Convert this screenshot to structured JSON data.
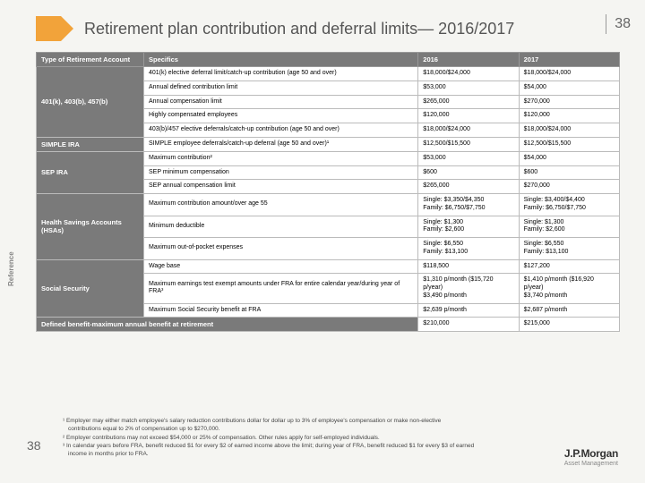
{
  "title": "Retirement plan contribution and deferral limits— 2016/2017",
  "page_number_top": "38",
  "page_number_bottom": "38",
  "reference_label": "Reference",
  "logo": {
    "main": "J.P.Morgan",
    "sub": "Asset Management"
  },
  "table": {
    "headers": [
      "Type of Retirement Account",
      "Specifics",
      "2016",
      "2017"
    ],
    "groups": [
      {
        "category": "401(k), 403(b), 457(b)",
        "rows": [
          {
            "spec": "401(k) elective deferral limit/catch-up contribution (age 50 and over)",
            "v2016": "$18,000/$24,000",
            "v2017": "$18,000/$24,000"
          },
          {
            "spec": "Annual defined contribution limit",
            "v2016": "$53,000",
            "v2017": "$54,000"
          },
          {
            "spec": "Annual compensation limit",
            "v2016": "$265,000",
            "v2017": "$270,000"
          },
          {
            "spec": "Highly compensated employees",
            "v2016": "$120,000",
            "v2017": "$120,000"
          },
          {
            "spec": "403(b)/457 elective deferrals/catch-up contribution (age 50 and over)",
            "v2016": "$18,000/$24,000",
            "v2017": "$18,000/$24,000"
          }
        ]
      },
      {
        "category": "SIMPLE IRA",
        "rows": [
          {
            "spec": "SIMPLE employee deferrals/catch-up deferral (age 50 and over)¹",
            "v2016": "$12,500/$15,500",
            "v2017": "$12,500/$15,500"
          }
        ]
      },
      {
        "category": "SEP IRA",
        "rows": [
          {
            "spec": "Maximum contribution²",
            "v2016": "$53,000",
            "v2017": "$54,000"
          },
          {
            "spec": "SEP minimum compensation",
            "v2016": "$600",
            "v2017": "$600"
          },
          {
            "spec": "SEP annual compensation limit",
            "v2016": "$265,000",
            "v2017": "$270,000"
          }
        ]
      },
      {
        "category": "Health Savings Accounts (HSAs)",
        "rows": [
          {
            "spec": "Maximum contribution amount/over age 55",
            "v2016": "Single: $3,350/$4,350\nFamily: $6,750/$7,750",
            "v2017": "Single: $3,400/$4,400\nFamily: $6,750/$7,750"
          },
          {
            "spec": "Minimum deductible",
            "v2016": "Single: $1,300\nFamily: $2,600",
            "v2017": "Single: $1,300\nFamily: $2,600"
          },
          {
            "spec": "Maximum out-of-pocket expenses",
            "v2016": "Single: $6,550\nFamily: $13,100",
            "v2017": "Single: $6,550\nFamily: $13,100"
          }
        ]
      },
      {
        "category": "Social Security",
        "rows": [
          {
            "spec": "Wage base",
            "v2016": "$118,500",
            "v2017": "$127,200"
          },
          {
            "spec": "Maximum earnings test exempt amounts under FRA for entire calendar year/during year of FRA³",
            "v2016": "$1,310 p/month ($15,720 p/year)\n$3,490 p/month",
            "v2017": "$1,410 p/month ($16,920 p/year)\n$3,740 p/month"
          },
          {
            "spec": "Maximum Social Security benefit at FRA",
            "v2016": "$2,639 p/month",
            "v2017": "$2,687 p/month"
          }
        ]
      },
      {
        "category": "Defined benefit-maximum annual benefit at retirement",
        "rows": [
          {
            "spec": "",
            "v2016": "$210,000",
            "v2017": "$215,000"
          }
        ]
      }
    ]
  },
  "footnotes": [
    "¹ Employer may either match employee's salary reduction contributions dollar for dollar up to 3% of employee's compensation or make non-elective contributions equal to 2% of compensation up to $270,000.",
    "² Employer contributions may not exceed $54,000 or 25% of compensation. Other rules apply for self-employed individuals.",
    "³ In calendar years before FRA, benefit reduced $1 for every $2 of earned income above the limit; during year of FRA, benefit reduced $1 for every $3 of earned income in months prior to FRA."
  ]
}
